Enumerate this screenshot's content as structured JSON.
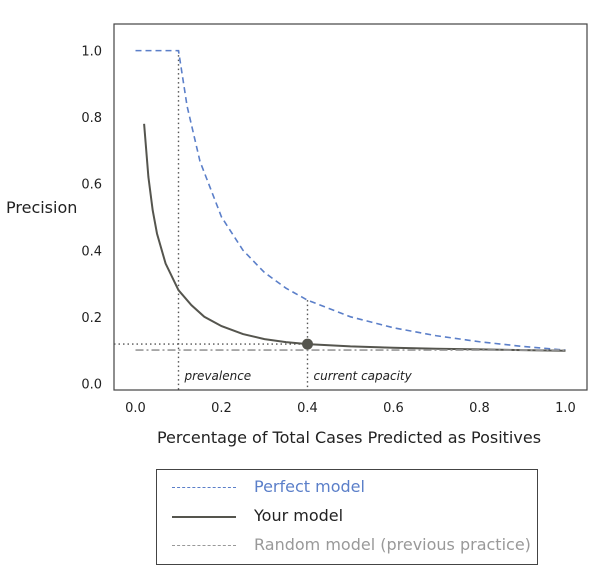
{
  "chart_data": {
    "type": "line",
    "title": "",
    "xlabel": "Percentage of Total Cases Predicted as Positives",
    "ylabel": "Precision",
    "xlim": [
      -0.05,
      1.05
    ],
    "ylim": [
      -0.02,
      1.08
    ],
    "x_ticks": [
      "0.0",
      "0.2",
      "0.4",
      "0.6",
      "0.8",
      "1.0"
    ],
    "y_ticks": [
      "0.0",
      "0.2",
      "0.4",
      "0.6",
      "0.8",
      "1.0"
    ],
    "grid": false,
    "legend_position": "bottom-outside",
    "prevalence": 0.1,
    "series": [
      {
        "name": "Perfect model",
        "color": "#5b7fc9",
        "style": "dashed",
        "x": [
          0.0,
          0.02,
          0.05,
          0.08,
          0.1,
          0.12,
          0.15,
          0.2,
          0.25,
          0.3,
          0.35,
          0.4,
          0.5,
          0.6,
          0.7,
          0.8,
          0.9,
          1.0
        ],
        "y": [
          1.0,
          1.0,
          1.0,
          1.0,
          1.0,
          0.833,
          0.667,
          0.5,
          0.4,
          0.333,
          0.286,
          0.25,
          0.2,
          0.167,
          0.143,
          0.125,
          0.111,
          0.1
        ]
      },
      {
        "name": "Your model",
        "color": "#55554e",
        "style": "solid",
        "x": [
          0.02,
          0.03,
          0.04,
          0.05,
          0.07,
          0.1,
          0.13,
          0.16,
          0.2,
          0.25,
          0.3,
          0.35,
          0.4,
          0.5,
          0.6,
          0.7,
          0.8,
          0.9,
          1.0
        ],
        "y": [
          0.78,
          0.62,
          0.52,
          0.45,
          0.36,
          0.28,
          0.235,
          0.2,
          0.172,
          0.148,
          0.133,
          0.124,
          0.118,
          0.111,
          0.107,
          0.104,
          0.102,
          0.1,
          0.098
        ]
      },
      {
        "name": "Random model (previous practice)",
        "color": "#999999",
        "style": "dashdot",
        "x": [
          0.0,
          1.0
        ],
        "y": [
          0.1,
          0.1
        ]
      }
    ],
    "reference_lines": [
      {
        "label": "prevalence",
        "x": 0.1,
        "style": "dotted"
      },
      {
        "label": "current capacity",
        "x": 0.4,
        "style": "dotted"
      },
      {
        "label": "",
        "y": 0.118,
        "style": "dotted"
      }
    ],
    "marker": {
      "x": 0.4,
      "y": 0.118,
      "color": "#55554e"
    }
  },
  "legend": {
    "items": [
      {
        "label": "Perfect model",
        "color": "#5b7fc9"
      },
      {
        "label": "Your model",
        "color": "#55554e"
      },
      {
        "label": "Random model (previous practice)",
        "color": "#999999"
      }
    ]
  }
}
